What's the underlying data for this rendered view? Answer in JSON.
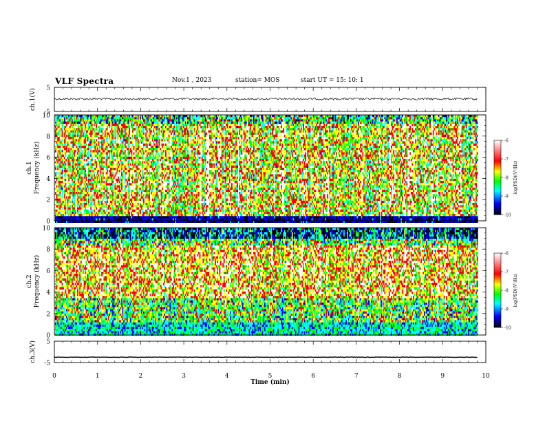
{
  "header": {
    "title": "VLF Spectra",
    "date": "Nov.1  , 2023",
    "station": "station= MOS",
    "start": "start  UT =   15: 10: 1"
  },
  "chart_data": {
    "type": "heatmap",
    "x_axis": {
      "label": "Time  (min)",
      "range": [
        0,
        10
      ],
      "ticks": [
        "0",
        "1",
        "2",
        "3",
        "4",
        "5",
        "6",
        "7",
        "8",
        "9",
        "10"
      ]
    },
    "panels": [
      {
        "name": "ch.1(V)",
        "type": "line",
        "ylabel": "ch.1(V)",
        "ylim": [
          -5,
          5
        ],
        "ytick_labels": [
          "5",
          "-5"
        ],
        "level": 0.2,
        "color": "#000000"
      },
      {
        "name": "ch.1 spectrogram",
        "type": "heatmap",
        "ylabel": "ch.1\nFrequency  (kHz)",
        "ylim": [
          0,
          10
        ],
        "ytick_labels": [
          "0",
          "2",
          "4",
          "6",
          "8",
          "10"
        ],
        "data_end_min": 9.8,
        "colorbar": {
          "label": "log(PSD)(V²/Hz)",
          "range": [
            -10,
            -6
          ],
          "tick_labels": [
            "-6",
            "-7",
            "-8",
            "-9",
            "-10"
          ]
        }
      },
      {
        "name": "ch.2 spectrogram",
        "type": "heatmap",
        "ylabel": "ch.2\nFrequency  (kHz)",
        "ylim": [
          0,
          10
        ],
        "ytick_labels": [
          "0",
          "2",
          "4",
          "6",
          "8",
          "10"
        ],
        "data_end_min": 9.8,
        "colorbar": {
          "label": "log(PSD)(V²/Hz)",
          "range": [
            -10,
            -6
          ],
          "tick_labels": [
            "-6",
            "-7",
            "-8",
            "-9",
            "-10"
          ]
        }
      },
      {
        "name": "ch.3(V)",
        "type": "line",
        "ylabel": "ch.3(V)",
        "ylim": [
          -5,
          5
        ],
        "ytick_labels": [
          "5",
          "-5"
        ],
        "level": -2.5,
        "color": "#000000"
      }
    ],
    "colormap": [
      "#000000",
      "#0000ff",
      "#00ffff",
      "#00ff00",
      "#ffff00",
      "#ff0000",
      "#ffffff"
    ]
  }
}
